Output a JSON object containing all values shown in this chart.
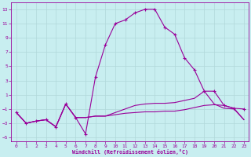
{
  "xlabel": "Windchill (Refroidissement éolien,°C)",
  "background_color": "#c8eef0",
  "grid_color": "#b0d8da",
  "line_color": "#990099",
  "xlim": [
    -0.5,
    23.5
  ],
  "ylim": [
    -5.5,
    14.0
  ],
  "yticks": [
    -5,
    -3,
    -1,
    1,
    3,
    5,
    7,
    9,
    11,
    13
  ],
  "xticks": [
    0,
    1,
    2,
    3,
    4,
    5,
    6,
    7,
    8,
    9,
    10,
    11,
    12,
    13,
    14,
    15,
    16,
    17,
    18,
    19,
    20,
    21,
    22,
    23
  ],
  "hours": [
    0,
    1,
    2,
    3,
    4,
    5,
    6,
    7,
    8,
    9,
    10,
    11,
    12,
    13,
    14,
    15,
    16,
    17,
    18,
    19,
    20,
    21,
    22,
    23
  ],
  "line1": [
    -1.5,
    -3.0,
    -2.7,
    -2.5,
    -3.5,
    -0.3,
    -2.2,
    -4.5,
    3.5,
    8.0,
    11.0,
    11.5,
    12.5,
    13.0,
    13.0,
    10.5,
    9.5,
    6.2,
    4.5,
    1.5,
    1.5,
    -0.5,
    -0.9,
    -1.0
  ],
  "line2": [
    -1.5,
    -3.0,
    -2.7,
    -2.5,
    -3.5,
    -0.3,
    -2.2,
    -2.2,
    -2.0,
    -2.0,
    -1.8,
    -1.6,
    -1.5,
    -1.4,
    -1.4,
    -1.3,
    -1.3,
    -1.1,
    -0.8,
    -0.5,
    -0.4,
    -0.5,
    -0.9,
    -2.5
  ],
  "line3": [
    -1.5,
    -3.0,
    -2.7,
    -2.5,
    -3.5,
    -0.3,
    -2.2,
    -2.2,
    -2.0,
    -2.0,
    -1.5,
    -1.0,
    -0.5,
    -0.3,
    -0.2,
    -0.2,
    -0.1,
    0.2,
    0.5,
    1.5,
    -0.3,
    -0.9,
    -1.0,
    -2.5
  ]
}
